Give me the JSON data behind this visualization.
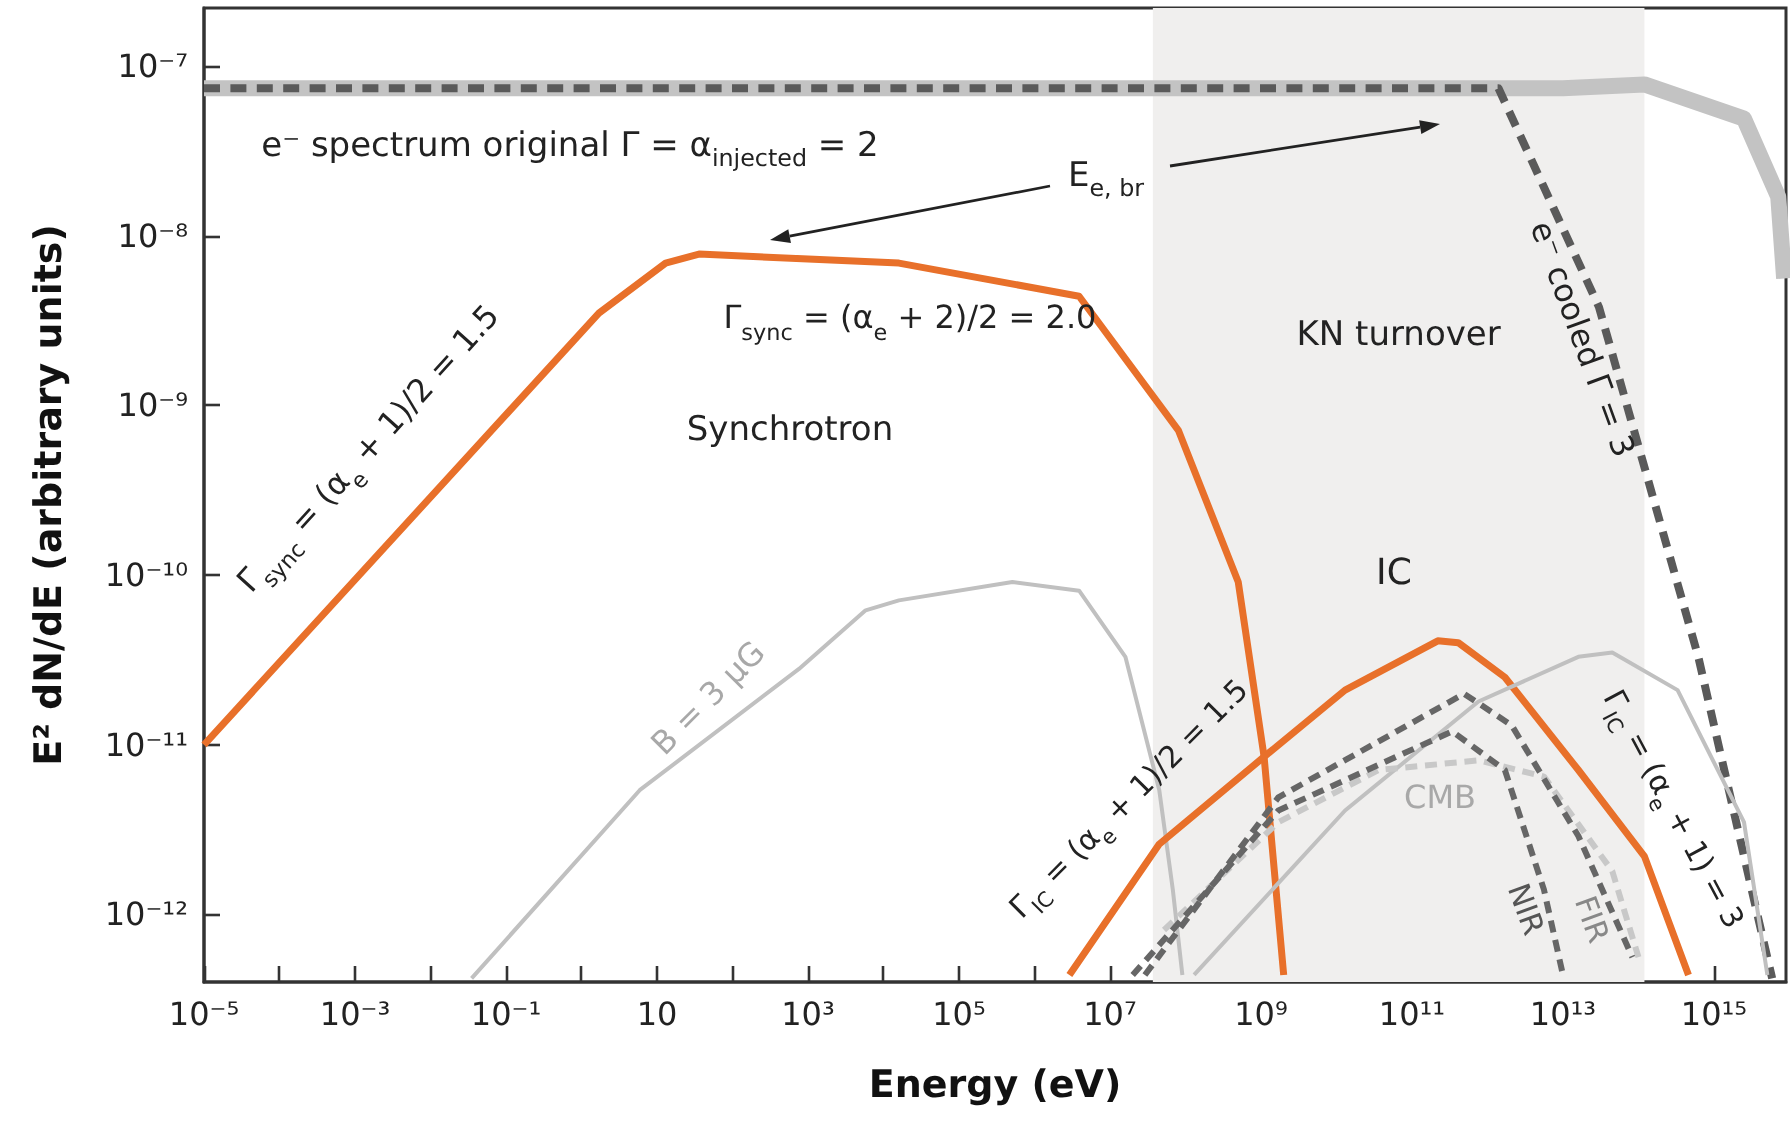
{
  "chart_data": {
    "type": "line",
    "xlabel": "Energy (eV)",
    "ylabel": "E² dN/dE (arbitrary units)",
    "log": "xy",
    "grid": false,
    "marker": "none",
    "xlim": [
      1e-05,
      9000000000000000.0
    ],
    "ylim": [
      4e-13,
      2.2e-07
    ],
    "xticks": [
      {
        "value": 1e-05,
        "label": "10⁻⁵"
      },
      {
        "value": 0.0001,
        "label": null
      },
      {
        "value": 0.001,
        "label": "10⁻³"
      },
      {
        "value": 0.01,
        "label": null
      },
      {
        "value": 0.1,
        "label": "10⁻¹"
      },
      {
        "value": 1,
        "label": null
      },
      10,
      {
        "value": 100,
        "label": null
      },
      {
        "value": 1000.0,
        "label": "10³"
      },
      {
        "value": 10000.0,
        "label": null
      },
      {
        "value": 100000.0,
        "label": "10⁵"
      },
      {
        "value": 1000000.0,
        "label": null
      },
      {
        "value": 10000000.0,
        "label": "10⁷"
      },
      {
        "value": 100000000.0,
        "label": null
      },
      {
        "value": 1000000000.0,
        "label": "10⁹"
      },
      {
        "value": 10000000000.0,
        "label": null
      },
      {
        "value": 100000000000.0,
        "label": "10¹¹"
      },
      {
        "value": 1000000000000.0,
        "label": null
      },
      {
        "value": 10000000000000.0,
        "label": "10¹³"
      },
      {
        "value": 100000000000000.0,
        "label": null
      },
      {
        "value": 1000000000000000.0,
        "label": "10¹⁵"
      }
    ],
    "yticks": [
      {
        "value": 1e-12,
        "label": "10⁻¹²"
      },
      {
        "value": 1e-11,
        "label": "10⁻¹¹"
      },
      {
        "value": 1e-10,
        "label": "10⁻¹⁰"
      },
      {
        "value": 1e-09,
        "label": "10⁻⁹"
      },
      {
        "value": 1e-08,
        "label": "10⁻⁸"
      },
      {
        "value": 1e-07,
        "label": "10⁻⁷"
      }
    ],
    "series": [
      {
        "color": "#c3c3c3",
        "line_style": "solid",
        "x": [
          1e-05,
          10000000000000.0,
          120000000000000.0,
          2500000000000000.0,
          7100000000000000.0,
          8500000000000000.0
        ],
        "values": [
          7.4e-08,
          7.4e-08,
          7.8e-08,
          4.9e-08,
          1.7e-08,
          5.6e-09
        ]
      },
      {
        "color": "#5a5a5a",
        "line_style": "dashed",
        "x": [
          1e-05,
          1400000000000.0,
          30000000000000.0,
          620000000000000.0,
          3800000000000000.0,
          5900000000000000.0
        ],
        "values": [
          7.4e-08,
          7.4e-08,
          3.8e-09,
          3.3e-11,
          9.8e-13,
          4.2e-13
        ]
      },
      {
        "color": "#e8702a",
        "line_style": "solid",
        "x": [
          1e-05,
          1.7,
          13,
          36,
          16000.0,
          3900000.0,
          81000000.0,
          500000000.0,
          1100000000.0,
          2000000000.0
        ],
        "values": [
          1e-11,
          3.5e-09,
          6.9e-09,
          7.8e-09,
          6.9e-09,
          4.4e-09,
          7.1e-10,
          9.1e-11,
          8.5e-12,
          4.4e-13
        ]
      },
      {
        "color": "#c0c0c0",
        "line_style": "solid",
        "x": [
          0.035,
          5.9,
          760,
          5800,
          16000.0,
          510000.0,
          3900000.0,
          16000000.0,
          45000000.0,
          68000000.0,
          91000000.0
        ],
        "values": [
          4.2e-13,
          5.4e-12,
          2.8e-11,
          6.2e-11,
          7.1e-11,
          9.1e-11,
          8.1e-11,
          3.3e-11,
          5.4e-12,
          1.4e-12,
          4.4e-13
        ]
      },
      {
        "color": "#e8702a",
        "line_style": "solid",
        "x": [
          2900000.0,
          45000000.0,
          1100000000.0,
          13000000000.0,
          220000000000.0,
          410000000000.0,
          1700000000000.0,
          16000000000000.0,
          120000000000000.0,
          460000000000000.0
        ],
        "values": [
          4.4e-13,
          2.6e-12,
          8.5e-12,
          2.1e-11,
          4.1e-11,
          4e-11,
          2.5e-11,
          7.1e-12,
          2.2e-12,
          4.4e-13
        ]
      },
      {
        "color": "#c0c0c0",
        "line_style": "solid",
        "x": [
          130000000.0,
          13000000000.0,
          760000000000.0,
          16000000000000.0,
          45000000000000.0,
          330000000000000.0,
          2500000000000000.0,
          5100000000000000.0
        ],
        "values": [
          4.4e-13,
          4.1e-12,
          1.8e-11,
          3.3e-11,
          3.5e-11,
          2.1e-11,
          3.5e-12,
          4.4e-13
        ]
      },
      {
        "color": "#c8c8c8",
        "line_style": "dashed",
        "x": [
          52000000.0,
          1700000000.0,
          36000000000.0,
          760000000000.0,
          5600000000000.0,
          45000000000000.0,
          100000000000000.0
        ],
        "values": [
          8.1e-13,
          3.5e-12,
          7.1e-12,
          8.1e-12,
          6.5e-12,
          1.8e-12,
          5.6e-13
        ]
      },
      {
        "color": "#666666",
        "line_style": "dashed",
        "x": [
          29000000.0,
          1700000000.0,
          490000000000.0,
          2100000000000.0,
          16000000000000.0,
          83000000000000.0
        ],
        "values": [
          4.4e-13,
          4.9e-12,
          2e-11,
          1.3e-11,
          2.9e-12,
          5.6e-13
        ]
      },
      {
        "color": "#666666",
        "line_style": "dashed",
        "x": [
          20000000.0,
          1700000000.0,
          340000000000.0,
          1700000000000.0,
          5600000000000.0,
          10000000000000.0
        ],
        "values": [
          4.4e-13,
          4.1e-12,
          1.2e-11,
          7.1e-12,
          1.4e-12,
          4.4e-13
        ]
      }
    ],
    "bands": [
      {
        "axis": "x",
        "from": 37000000.0,
        "to": 120000000000000.0,
        "label": "KN turnover",
        "color": "#f0efee"
      }
    ],
    "annotations": [
      "e⁻ spectrum original Γ = α$_{injected}$ = 2",
      "E$_{e, br}$",
      "Γ$_{sync}$ = (α$_{e}$ + 2)/2 = 2.0",
      "Synchrotron",
      "IC",
      "Γ$_{sync}$ = (α$_{e}$ + 1)/2 = 1.5",
      "B = 3 μG",
      "Γ$_{IC}$ = (α$_{e}$ + 1)/2 = 1.5",
      "CMB",
      "NIR",
      "FIR",
      "Γ$_{IC}$ = (α$_{e}$ + 1) = 3",
      "e⁻ cooled Γ = 3"
    ]
  }
}
